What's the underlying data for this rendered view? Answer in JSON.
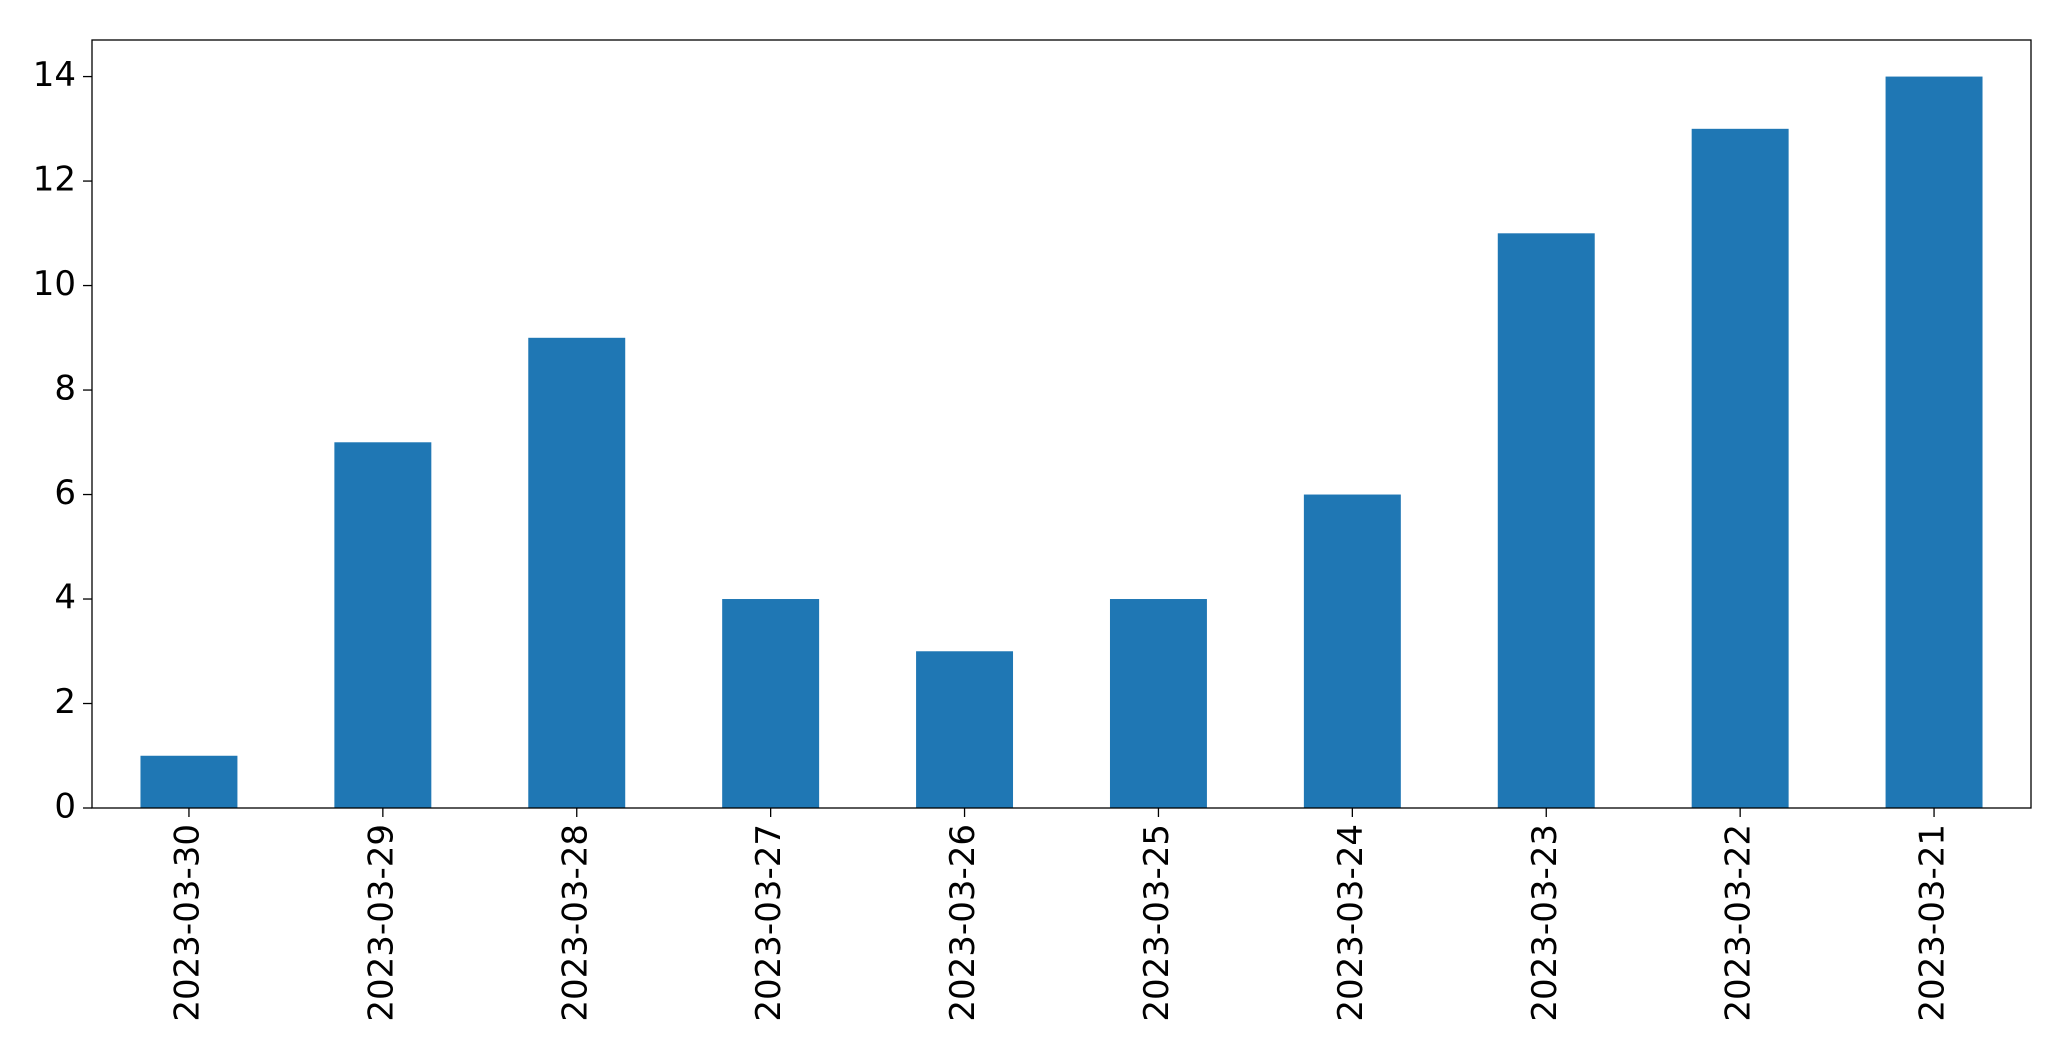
{
  "chart_data": {
    "type": "bar",
    "categories": [
      "2023-03-30",
      "2023-03-29",
      "2023-03-28",
      "2023-03-27",
      "2023-03-26",
      "2023-03-25",
      "2023-03-24",
      "2023-03-23",
      "2023-03-22",
      "2023-03-21"
    ],
    "values": [
      1,
      7,
      9,
      4,
      3,
      4,
      6,
      11,
      13,
      14
    ],
    "color": "#1f77b4",
    "ylim": [
      0,
      14.7
    ],
    "yticks": [
      0,
      2,
      4,
      6,
      8,
      10,
      12,
      14
    ],
    "grid": false
  }
}
